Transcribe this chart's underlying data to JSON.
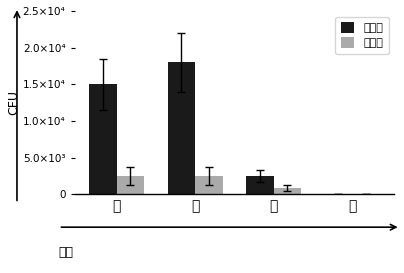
{
  "categories": [
    "肝",
    "脾",
    "肺",
    "脑"
  ],
  "day1_values": [
    15000,
    18000,
    2500,
    0
  ],
  "day1_errors": [
    3500,
    4000,
    800,
    0
  ],
  "day3_values": [
    2500,
    2500,
    800,
    0
  ],
  "day3_errors": [
    1200,
    1200,
    400,
    0
  ],
  "ylabel": "CFU",
  "xlabel": "器官",
  "legend_day1": "第一天",
  "legend_day3": "第三天",
  "ylim": [
    0,
    25000
  ],
  "yticks": [
    0,
    5000,
    10000,
    15000,
    20000,
    25000
  ],
  "ytick_labels": [
    "0",
    "5.0×10³",
    "1.0×10⁴",
    "1.5×10⁴",
    "2.0×10⁴",
    "2.5×10⁴"
  ],
  "bar_color_day1": "#1a1a1a",
  "bar_color_day3": "#aaaaaa",
  "bar_width": 0.35,
  "background_color": "#ffffff",
  "figure_width": 4.04,
  "figure_height": 2.73,
  "dpi": 100
}
